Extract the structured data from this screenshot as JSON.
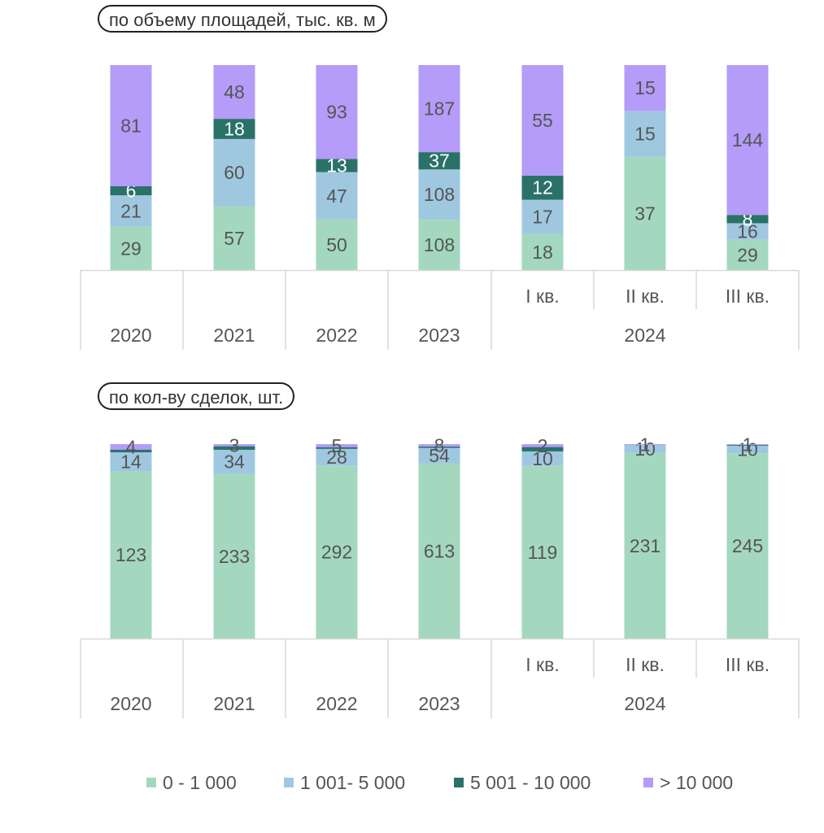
{
  "colors": {
    "s0": "#a3d8bf",
    "s1": "#9fc8e0",
    "s2": "#2a7268",
    "s3": "#b49cf8",
    "axis": "#d9d9d9",
    "label_dark": "#555555",
    "label_light": "#ffffff"
  },
  "legend": [
    {
      "name": "0 - 1 000",
      "color": "#a3d8bf"
    },
    {
      "name": "1 001- 5 000",
      "color": "#9fc8e0"
    },
    {
      "name": "5 001 - 10 000",
      "color": "#2a7268"
    },
    {
      "name": "> 10 000",
      "color": "#b49cf8"
    }
  ],
  "chart_data": [
    {
      "type": "bar",
      "stacked": "percent",
      "title": "по объему площадей, тыс. кв. м",
      "categories": [
        "2020",
        "2021",
        "2022",
        "2023",
        "I кв.",
        "II кв.",
        "III кв."
      ],
      "category_groups": [
        {
          "label": "2020",
          "members": [
            "2020"
          ]
        },
        {
          "label": "2021",
          "members": [
            "2021"
          ]
        },
        {
          "label": "2022",
          "members": [
            "2022"
          ]
        },
        {
          "label": "2023",
          "members": [
            "2023"
          ]
        },
        {
          "label": "2024",
          "members": [
            "I кв.",
            "II кв.",
            "III кв."
          ]
        }
      ],
      "series": [
        {
          "name": "0 - 1 000",
          "values": [
            29,
            57,
            50,
            108,
            18,
            37,
            29
          ]
        },
        {
          "name": "1 001- 5 000",
          "values": [
            21,
            60,
            47,
            108,
            17,
            15,
            16
          ]
        },
        {
          "name": "5 001 - 10 000",
          "values": [
            6,
            18,
            13,
            37,
            12,
            0,
            8
          ]
        },
        {
          "name": "> 10 000",
          "values": [
            81,
            48,
            93,
            187,
            55,
            15,
            144
          ]
        }
      ],
      "ylim": [
        0,
        100
      ],
      "legend": "bottom"
    },
    {
      "type": "bar",
      "stacked": "percent",
      "title": "по кол-ву сделок, шт.",
      "categories": [
        "2020",
        "2021",
        "2022",
        "2023",
        "I кв.",
        "II кв.",
        "III кв."
      ],
      "category_groups": [
        {
          "label": "2020",
          "members": [
            "2020"
          ]
        },
        {
          "label": "2021",
          "members": [
            "2021"
          ]
        },
        {
          "label": "2022",
          "members": [
            "2022"
          ]
        },
        {
          "label": "2023",
          "members": [
            "2023"
          ]
        },
        {
          "label": "2024",
          "members": [
            "I кв.",
            "II кв.",
            "III кв."
          ]
        }
      ],
      "series": [
        {
          "name": "0 - 1 000",
          "values": [
            123,
            233,
            292,
            613,
            119,
            231,
            245
          ]
        },
        {
          "name": "1 001- 5 000",
          "values": [
            14,
            34,
            28,
            54,
            10,
            10,
            10
          ]
        },
        {
          "name": "5 001 - 10 000",
          "values": [
            2,
            5,
            3,
            5,
            3,
            0,
            1
          ]
        },
        {
          "name": "> 10 000",
          "values": [
            4,
            3,
            5,
            8,
            2,
            1,
            1
          ]
        }
      ],
      "unlabeled_series": [
        "5 001 - 10 000"
      ],
      "ylim": [
        0,
        100
      ],
      "legend": "bottom"
    }
  ]
}
